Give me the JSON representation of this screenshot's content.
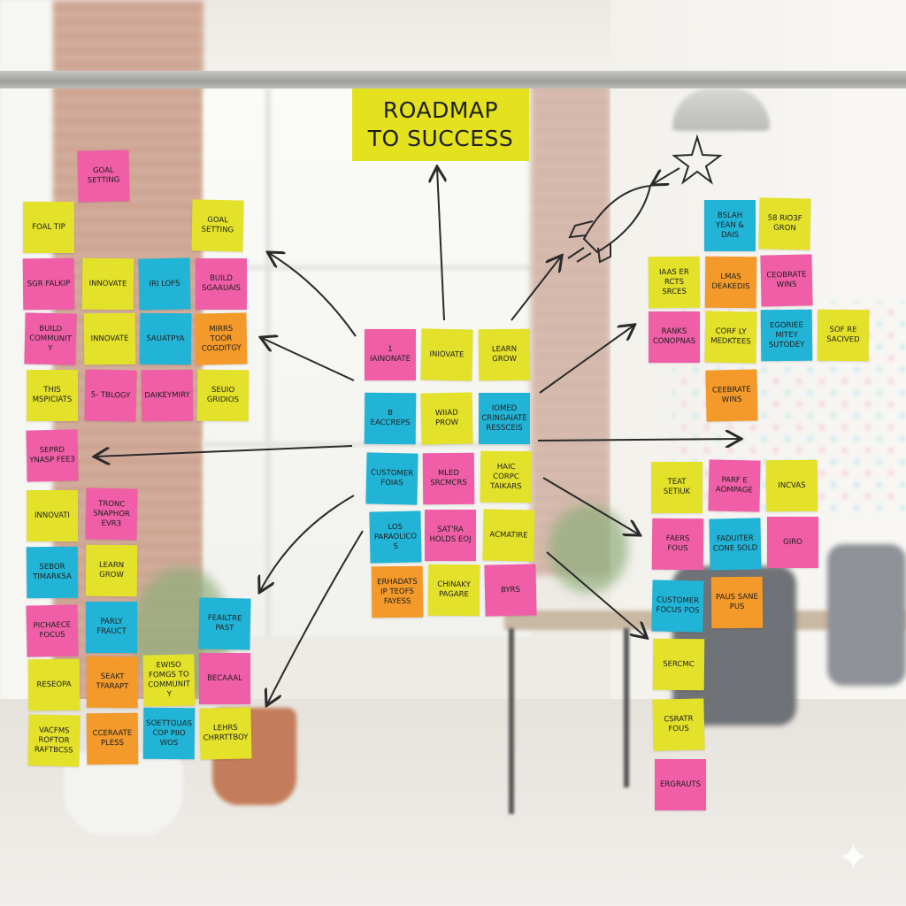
{
  "title": {
    "line1": "ROADMAP",
    "line2": "TO SUCCESS"
  },
  "colors": {
    "pink": "#ef5ea7",
    "yellow": "#e3e12a",
    "blue": "#22b4d6",
    "orange": "#f39a2a"
  },
  "notes": [
    {
      "text": "GOAL SETTING",
      "color": "pink"
    },
    {
      "text": "FOAL TIP",
      "color": "yellow"
    },
    {
      "text": "GOAL SETTING",
      "color": "yellow"
    },
    {
      "text": "SGR FALKIP",
      "color": "pink"
    },
    {
      "text": "INNOVATE",
      "color": "yellow"
    },
    {
      "text": "IRI LOFS",
      "color": "blue"
    },
    {
      "text": "BUILD SGAAUAIS",
      "color": "pink"
    },
    {
      "text": "BUILD COMMUNITY",
      "color": "pink"
    },
    {
      "text": "INNOVATE",
      "color": "yellow"
    },
    {
      "text": "SAUATPYA",
      "color": "blue"
    },
    {
      "text": "MIRRS TOOR COGDITGY",
      "color": "orange"
    },
    {
      "text": "THIS MSPICIATS",
      "color": "yellow"
    },
    {
      "text": "5- TBLOGY",
      "color": "pink"
    },
    {
      "text": "DAIKEYMIRY",
      "color": "pink"
    },
    {
      "text": "SEUIO GRIDIOS",
      "color": "yellow"
    },
    {
      "text": "SEPRD YNASP FEE3",
      "color": "pink"
    },
    {
      "text": "INNOVATI",
      "color": "yellow"
    },
    {
      "text": "TRONC SNAPHOR EVR3",
      "color": "pink"
    },
    {
      "text": "SEBOR TIMARKSA",
      "color": "blue"
    },
    {
      "text": "LEARN GROW",
      "color": "yellow"
    },
    {
      "text": "PICHAECE FOCUS",
      "color": "pink"
    },
    {
      "text": "PARLY FRAUCT",
      "color": "blue"
    },
    {
      "text": "FEAILTRE PAST",
      "color": "blue"
    },
    {
      "text": "RESEOPA",
      "color": "yellow"
    },
    {
      "text": "SEAKT TFARAPT",
      "color": "orange"
    },
    {
      "text": "EWISO FOMGS TO COMMUNITY",
      "color": "yellow"
    },
    {
      "text": "BECAAAL",
      "color": "pink"
    },
    {
      "text": "VACFMS ROFTOR RAFTBCSS",
      "color": "yellow"
    },
    {
      "text": "CCERAATE PLESS",
      "color": "orange"
    },
    {
      "text": "SOETTOUAS COP PIIO WOS",
      "color": "blue"
    },
    {
      "text": "LEHRS CHRRTTBOY",
      "color": "yellow"
    },
    {
      "text": "1 IAINONATE",
      "color": "pink"
    },
    {
      "text": "INIOVATE",
      "color": "yellow"
    },
    {
      "text": "LEARN GROW",
      "color": "yellow"
    },
    {
      "text": "B EACCREPS",
      "color": "blue"
    },
    {
      "text": "WIIAD PROW",
      "color": "yellow"
    },
    {
      "text": "IOMED CRINGAIATE RESSCEIS",
      "color": "blue"
    },
    {
      "text": "CUSTOMER FOIAS",
      "color": "blue"
    },
    {
      "text": "MLED SRCMCRS",
      "color": "pink"
    },
    {
      "text": "HAIC CORPC TAIKARS",
      "color": "yellow"
    },
    {
      "text": "LOS PARAOLICOS",
      "color": "blue"
    },
    {
      "text": "SAT'RA HOLDS EOJ",
      "color": "pink"
    },
    {
      "text": "ACMATIRE",
      "color": "yellow"
    },
    {
      "text": "ERHADATS IP TEOFS FAYESS",
      "color": "orange"
    },
    {
      "text": "CHINAKY PAGARE",
      "color": "yellow"
    },
    {
      "text": "BYRS",
      "color": "pink"
    },
    {
      "text": "BSLAH YEAN & DAIS",
      "color": "blue"
    },
    {
      "text": "58 RIO3F GRON",
      "color": "yellow"
    },
    {
      "text": "IAAS ER RCTS SRCES",
      "color": "yellow"
    },
    {
      "text": "LMAS DEAKEDIS",
      "color": "orange"
    },
    {
      "text": "CEOBRATE WINS",
      "color": "pink"
    },
    {
      "text": "RANKS CONOPNAS",
      "color": "pink"
    },
    {
      "text": "CORF LY MEDKTEES",
      "color": "yellow"
    },
    {
      "text": "EGORIEE MITEY SUTODEY",
      "color": "blue"
    },
    {
      "text": "SOF RE SACIVED",
      "color": "yellow"
    },
    {
      "text": "CEEBRATE WINS",
      "color": "orange"
    },
    {
      "text": "TEAT SETIUK",
      "color": "yellow"
    },
    {
      "text": "PARF E AOMPAGE",
      "color": "pink"
    },
    {
      "text": "INCVAS",
      "color": "yellow"
    },
    {
      "text": "FAERS FOUS",
      "color": "pink"
    },
    {
      "text": "FADUITER CONE SOLD",
      "color": "blue"
    },
    {
      "text": "GIRO",
      "color": "pink"
    },
    {
      "text": "CUSTOMER FOCUS POS",
      "color": "blue"
    },
    {
      "text": "PAUS SANE PUS",
      "color": "orange"
    },
    {
      "text": "SERCMC",
      "color": "yellow"
    },
    {
      "text": "CSRATR FOUS",
      "color": "yellow"
    },
    {
      "text": "ERGRAUTS",
      "color": "pink"
    }
  ]
}
